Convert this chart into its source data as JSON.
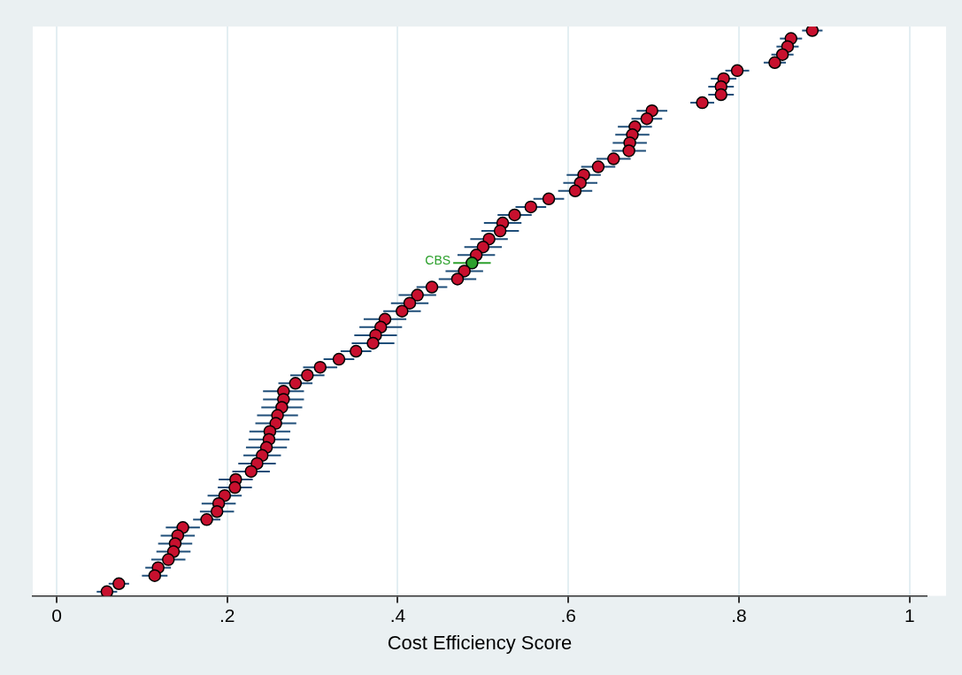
{
  "chart_data": {
    "type": "scatter",
    "orientation": "horizontal",
    "xlabel": "Cost Efficiency Score",
    "categories": [
      null,
      null,
      null,
      null,
      null,
      null,
      null,
      null,
      null,
      null,
      null,
      null,
      null,
      null,
      null,
      null,
      null,
      null,
      null,
      null,
      null,
      null,
      null,
      null,
      null,
      null,
      null,
      null,
      null,
      null,
      null,
      null,
      null,
      null,
      null,
      null,
      null,
      null,
      null,
      null,
      null,
      null,
      null,
      null,
      null,
      null,
      null,
      null,
      null,
      null,
      null,
      null,
      null,
      null,
      null,
      null,
      null,
      null,
      null,
      null,
      null,
      null,
      null,
      null,
      null,
      null,
      null,
      null,
      null,
      null,
      null
    ],
    "values": [
      0.886,
      0.861,
      0.857,
      0.851,
      0.842,
      0.798,
      0.782,
      0.779,
      0.779,
      0.757,
      0.698,
      0.692,
      0.678,
      0.675,
      0.672,
      0.671,
      0.653,
      0.635,
      0.618,
      0.614,
      0.608,
      0.577,
      0.556,
      0.537,
      0.523,
      0.52,
      0.507,
      0.5,
      0.492,
      0.487,
      0.478,
      0.47,
      0.44,
      0.423,
      0.414,
      0.405,
      0.385,
      0.38,
      0.374,
      0.371,
      0.351,
      0.331,
      0.309,
      0.294,
      0.28,
      0.266,
      0.266,
      0.264,
      0.259,
      0.257,
      0.25,
      0.249,
      0.246,
      0.241,
      0.235,
      0.228,
      0.21,
      0.209,
      0.197,
      0.19,
      0.188,
      0.176,
      0.148,
      0.142,
      0.139,
      0.137,
      0.131,
      0.119,
      0.115,
      0.073,
      0.059
    ],
    "errors": [
      0.012,
      0.013,
      0.013,
      0.013,
      0.013,
      0.014,
      0.015,
      0.015,
      0.015,
      0.014,
      0.018,
      0.018,
      0.02,
      0.02,
      0.02,
      0.02,
      0.02,
      0.02,
      0.02,
      0.02,
      0.02,
      0.018,
      0.018,
      0.02,
      0.022,
      0.022,
      0.022,
      0.022,
      0.022,
      0.022,
      0.022,
      0.022,
      0.018,
      0.022,
      0.022,
      0.022,
      0.025,
      0.025,
      0.025,
      0.025,
      0.018,
      0.018,
      0.02,
      0.02,
      0.02,
      0.024,
      0.024,
      0.024,
      0.024,
      0.024,
      0.024,
      0.024,
      0.024,
      0.022,
      0.022,
      0.022,
      0.02,
      0.02,
      0.02,
      0.02,
      0.02,
      0.016,
      0.02,
      0.02,
      0.02,
      0.02,
      0.02,
      0.015,
      0.015,
      0.012,
      0.012
    ],
    "colors": [
      "#c8102e",
      "#c8102e",
      "#c8102e",
      "#c8102e",
      "#c8102e",
      "#c8102e",
      "#c8102e",
      "#c8102e",
      "#c8102e",
      "#c8102e",
      "#c8102e",
      "#c8102e",
      "#c8102e",
      "#c8102e",
      "#c8102e",
      "#c8102e",
      "#c8102e",
      "#c8102e",
      "#c8102e",
      "#c8102e",
      "#c8102e",
      "#c8102e",
      "#c8102e",
      "#c8102e",
      "#c8102e",
      "#c8102e",
      "#c8102e",
      "#c8102e",
      "#c8102e",
      "#2ca02c",
      "#c8102e",
      "#c8102e",
      "#c8102e",
      "#c8102e",
      "#c8102e",
      "#c8102e",
      "#c8102e",
      "#c8102e",
      "#c8102e",
      "#c8102e",
      "#c8102e",
      "#c8102e",
      "#c8102e",
      "#c8102e",
      "#c8102e",
      "#c8102e",
      "#c8102e",
      "#c8102e",
      "#c8102e",
      "#c8102e",
      "#c8102e",
      "#c8102e",
      "#c8102e",
      "#c8102e",
      "#c8102e",
      "#c8102e",
      "#c8102e",
      "#c8102e",
      "#c8102e",
      "#c8102e",
      "#c8102e",
      "#c8102e",
      "#c8102e",
      "#c8102e",
      "#c8102e",
      "#c8102e",
      "#c8102e",
      "#c8102e",
      "#c8102e",
      "#c8102e",
      "#c8102e"
    ],
    "value_labels": [
      null,
      null,
      null,
      null,
      null,
      null,
      null,
      null,
      null,
      null,
      null,
      null,
      null,
      null,
      null,
      null,
      null,
      null,
      null,
      null,
      null,
      null,
      null,
      null,
      null,
      null,
      null,
      null,
      null,
      "CBS",
      null,
      null,
      null,
      null,
      null,
      null,
      null,
      null,
      null,
      null,
      null,
      null,
      null,
      null,
      null,
      null,
      null,
      null,
      null,
      null,
      null,
      null,
      null,
      null,
      null,
      null,
      null,
      null,
      null,
      null,
      null,
      null,
      null,
      null,
      null,
      null,
      null,
      null,
      null,
      null,
      null
    ],
    "xlim": [
      -0.028,
      1.02
    ],
    "xticks": [
      0,
      {
        "value": 0.2,
        "label": ".2"
      },
      {
        "value": 0.4,
        "label": ".4"
      },
      {
        "value": 0.6,
        "label": ".6"
      },
      {
        "value": 0.8,
        "label": ".8"
      },
      1
    ],
    "grid": "x",
    "legend": false,
    "marker": "circle"
  }
}
